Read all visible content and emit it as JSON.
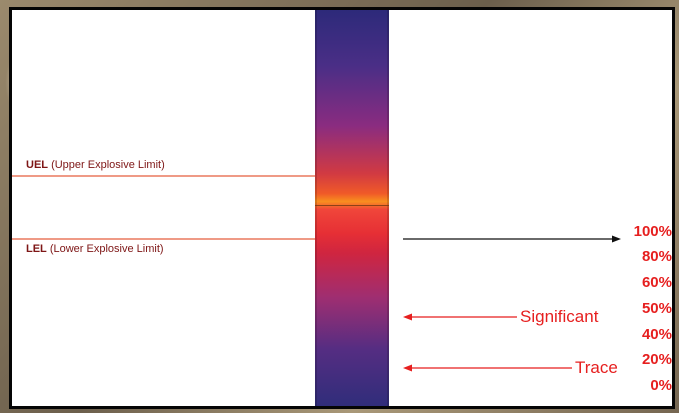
{
  "colors": {
    "accent_red": "#e61f1f",
    "label_text": "#7e1616",
    "limit_line": "#ef9a86",
    "frame": "#050505"
  },
  "limits": {
    "uel": {
      "abbr": "UEL",
      "description": "(Upper Explosive Limit)"
    },
    "lel": {
      "abbr": "LEL",
      "description": "(Lower Explosive Limit)"
    }
  },
  "scale": {
    "levels": [
      {
        "label": "100%",
        "value": 100
      },
      {
        "label": "80%",
        "value": 80
      },
      {
        "label": "60%",
        "value": 60
      },
      {
        "label": "50%",
        "value": 50
      },
      {
        "label": "40%",
        "value": 40
      },
      {
        "label": "20%",
        "value": 20
      },
      {
        "label": "0%",
        "value": 0
      }
    ]
  },
  "indicators": {
    "significant": "Significant",
    "trace": "Trace"
  }
}
